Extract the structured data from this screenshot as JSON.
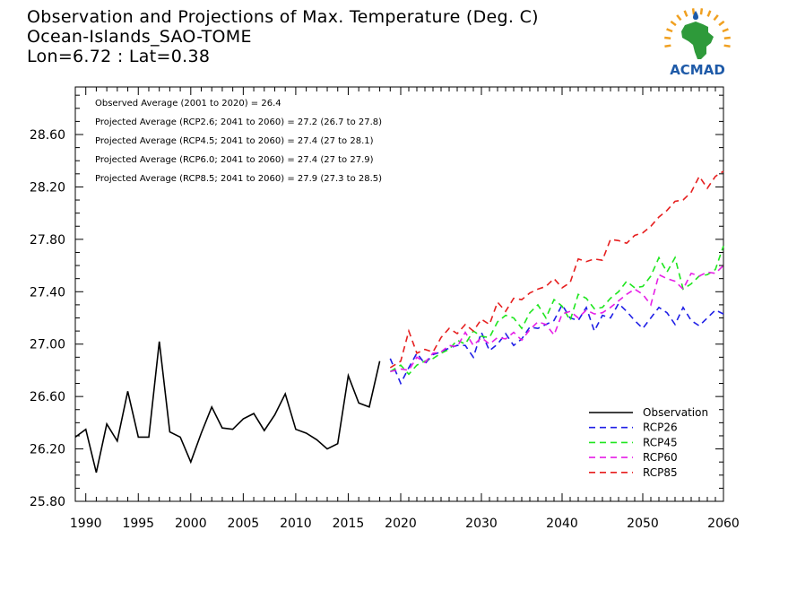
{
  "title_lines": [
    "Observation and Projections of Max. Temperature (Deg. C)",
    "Ocean-Islands_SAO-TOME",
    "Lon=6.72 : Lat=0.38"
  ],
  "logo": {
    "text": "ACMAD",
    "icon": "africa-map-sun-logo"
  },
  "colors": {
    "observation": "#000000",
    "rcp26": "#1f1fe6",
    "rcp45": "#1fe61f",
    "rcp60": "#e61fe6",
    "rcp85": "#e61f1f",
    "logo_blue": "#1e5aa8",
    "logo_green": "#2e9a3a",
    "logo_orange": "#f0a020"
  },
  "chart_data": {
    "type": "line",
    "title": "Observation and Projections of Max. Temperature (Deg. C)",
    "xlabel": "",
    "ylabel": "",
    "xlim": [
      1989,
      2060
    ],
    "ylim": [
      25.8,
      29.0
    ],
    "x_ticks": [
      "1990",
      "1995",
      "2000",
      "2005",
      "2010",
      "2015",
      "2020",
      "2030",
      "2040",
      "2050",
      "2060"
    ],
    "y_ticks": [
      "25.80",
      "26.20",
      "26.60",
      "27.00",
      "27.40",
      "27.80",
      "28.20",
      "28.60"
    ],
    "grid": false,
    "legend_position": "bottom-right",
    "annotations": [
      "Observed Average (2001 to 2020) = 26.4",
      "Projected Average (RCP2.6; 2041 to 2060) = 27.2 (26.7 to 27.8)",
      "Projected Average (RCP4.5; 2041 to 2060) = 27.4 (27 to 28.1)",
      "Projected Average (RCP6.0; 2041 to 2060) = 27.4 (27 to 27.9)",
      "Projected Average (RCP8.5; 2041 to 2060) = 27.9 (27.3 to 28.5)"
    ],
    "series": [
      {
        "name": "Observation",
        "style": "solid",
        "color_key": "observation",
        "x": [
          1989,
          1990,
          1991,
          1992,
          1993,
          1994,
          1995,
          1996,
          1997,
          1998,
          1999,
          2000,
          2001,
          2002,
          2003,
          2004,
          2005,
          2006,
          2007,
          2008,
          2009,
          2010,
          2011,
          2012,
          2013,
          2014,
          2015,
          2016,
          2017,
          2018
        ],
        "values": [
          26.29,
          26.35,
          26.02,
          26.39,
          26.26,
          26.64,
          26.29,
          26.29,
          27.02,
          26.33,
          26.29,
          26.1,
          26.32,
          26.52,
          26.36,
          26.35,
          26.43,
          26.47,
          26.34,
          26.46,
          26.62,
          26.35,
          26.32,
          26.27,
          26.2,
          26.24,
          26.76,
          26.55,
          26.52,
          26.87
        ]
      },
      {
        "name": "RCP26",
        "style": "dashed",
        "color_key": "rcp26",
        "x": [
          2019,
          2020,
          2021,
          2022,
          2023,
          2024,
          2025,
          2026,
          2027,
          2028,
          2029,
          2030,
          2031,
          2032,
          2033,
          2034,
          2035,
          2036,
          2037,
          2038,
          2039,
          2040,
          2041,
          2042,
          2043,
          2044,
          2045,
          2046,
          2047,
          2048,
          2049,
          2050,
          2051,
          2052,
          2053,
          2054,
          2055,
          2056,
          2057,
          2058,
          2059,
          2060
        ],
        "values": [
          26.89,
          26.7,
          26.82,
          26.93,
          26.85,
          26.92,
          26.94,
          26.97,
          26.99,
          26.99,
          26.9,
          27.09,
          26.95,
          27.0,
          27.08,
          26.99,
          27.04,
          27.13,
          27.12,
          27.15,
          27.18,
          27.3,
          27.2,
          27.18,
          27.28,
          27.1,
          27.22,
          27.2,
          27.31,
          27.25,
          27.18,
          27.12,
          27.2,
          27.28,
          27.24,
          27.15,
          27.28,
          27.18,
          27.14,
          27.2,
          27.26,
          27.23
        ]
      },
      {
        "name": "RCP45",
        "style": "dashed",
        "color_key": "rcp45",
        "x": [
          2019,
          2020,
          2021,
          2022,
          2023,
          2024,
          2025,
          2026,
          2027,
          2028,
          2029,
          2030,
          2031,
          2032,
          2033,
          2034,
          2035,
          2036,
          2037,
          2038,
          2039,
          2040,
          2041,
          2042,
          2043,
          2044,
          2045,
          2046,
          2047,
          2048,
          2049,
          2050,
          2051,
          2052,
          2053,
          2054,
          2055,
          2056,
          2057,
          2058,
          2059,
          2060
        ],
        "values": [
          26.79,
          26.84,
          26.77,
          26.84,
          26.87,
          26.89,
          26.93,
          26.96,
          27.03,
          27.0,
          27.1,
          27.06,
          27.05,
          27.17,
          27.22,
          27.2,
          27.12,
          27.24,
          27.3,
          27.2,
          27.34,
          27.29,
          27.18,
          27.38,
          27.35,
          27.27,
          27.28,
          27.35,
          27.4,
          27.48,
          27.43,
          27.44,
          27.52,
          27.66,
          27.55,
          27.66,
          27.42,
          27.46,
          27.52,
          27.53,
          27.57,
          27.75
        ]
      },
      {
        "name": "RCP60",
        "style": "dashed",
        "color_key": "rcp60",
        "x": [
          2019,
          2020,
          2021,
          2022,
          2023,
          2024,
          2025,
          2026,
          2027,
          2028,
          2029,
          2030,
          2031,
          2032,
          2033,
          2034,
          2035,
          2036,
          2037,
          2038,
          2039,
          2040,
          2041,
          2042,
          2043,
          2044,
          2045,
          2046,
          2047,
          2048,
          2049,
          2050,
          2051,
          2052,
          2053,
          2054,
          2055,
          2056,
          2057,
          2058,
          2059,
          2060
        ],
        "values": [
          26.79,
          26.81,
          26.8,
          26.9,
          26.86,
          26.93,
          26.94,
          26.99,
          26.98,
          27.09,
          26.99,
          27.05,
          27.0,
          27.05,
          27.04,
          27.09,
          27.03,
          27.11,
          27.17,
          27.15,
          27.07,
          27.23,
          27.25,
          27.2,
          27.26,
          27.23,
          27.24,
          27.28,
          27.33,
          27.38,
          27.42,
          27.38,
          27.3,
          27.53,
          27.5,
          27.48,
          27.42,
          27.54,
          27.52,
          27.55,
          27.54,
          27.6
        ]
      },
      {
        "name": "RCP85",
        "style": "dashed",
        "color_key": "rcp85",
        "x": [
          2019,
          2020,
          2021,
          2022,
          2023,
          2024,
          2025,
          2026,
          2027,
          2028,
          2029,
          2030,
          2031,
          2032,
          2033,
          2034,
          2035,
          2036,
          2037,
          2038,
          2039,
          2040,
          2041,
          2042,
          2043,
          2044,
          2045,
          2046,
          2047,
          2048,
          2049,
          2050,
          2051,
          2052,
          2053,
          2054,
          2055,
          2056,
          2057,
          2058,
          2059,
          2060
        ],
        "values": [
          26.82,
          26.87,
          27.1,
          26.93,
          26.96,
          26.94,
          27.05,
          27.12,
          27.08,
          27.15,
          27.1,
          27.19,
          27.15,
          27.32,
          27.25,
          27.35,
          27.34,
          27.39,
          27.42,
          27.44,
          27.5,
          27.43,
          27.47,
          27.65,
          27.63,
          27.65,
          27.64,
          27.8,
          27.79,
          27.77,
          27.83,
          27.85,
          27.9,
          27.97,
          28.02,
          28.09,
          28.1,
          28.16,
          28.28,
          28.19,
          28.28,
          28.32
        ]
      }
    ]
  }
}
